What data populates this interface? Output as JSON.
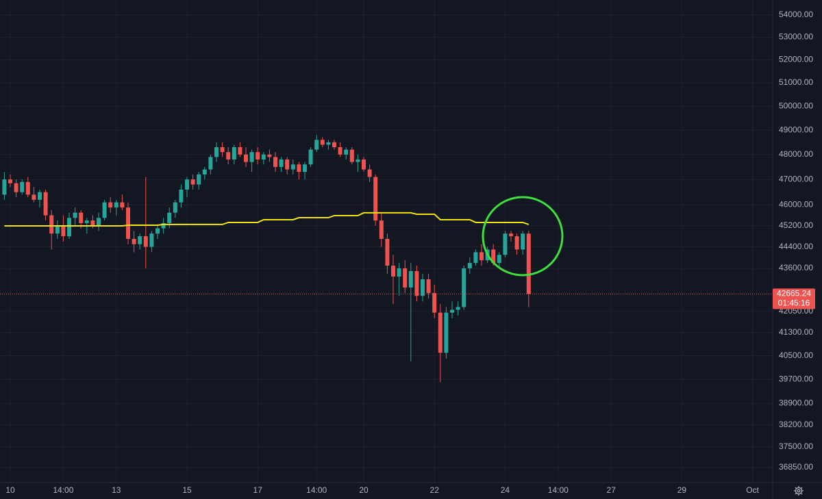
{
  "chart_data": {
    "type": "candlestick",
    "log": true,
    "grid": true,
    "up_color": "#26a69a",
    "down_color": "#ef5350",
    "ylim": [
      36384,
      54693
    ],
    "yticks": [
      {
        "value": 54000,
        "label": "54000.00"
      },
      {
        "value": 53000,
        "label": "53000.00"
      },
      {
        "value": 52000,
        "label": "52000.00"
      },
      {
        "value": 51000,
        "label": "51000.00"
      },
      {
        "value": 50000,
        "label": "50000.00"
      },
      {
        "value": 49000,
        "label": "49000.00"
      },
      {
        "value": 48000,
        "label": "48000.00"
      },
      {
        "value": 47000,
        "label": "47000.00"
      },
      {
        "value": 46000,
        "label": "46000.00"
      },
      {
        "value": 45200,
        "label": "45200.00"
      },
      {
        "value": 44400,
        "label": "44400.00"
      },
      {
        "value": 43600,
        "label": "43600.00"
      },
      {
        "value": 42050,
        "label": "42050.00"
      },
      {
        "value": 41300,
        "label": "41300.00"
      },
      {
        "value": 40500,
        "label": "40500.00"
      },
      {
        "value": 39700,
        "label": "39700.00"
      },
      {
        "value": 38900,
        "label": "38900.00"
      },
      {
        "value": 38200,
        "label": "38200.00"
      },
      {
        "value": 37500,
        "label": "37500.00"
      },
      {
        "value": 36850,
        "label": "36850.00"
      }
    ],
    "categories": [
      null,
      "10",
      null,
      null,
      null,
      null,
      null,
      null,
      null,
      null,
      "14:00",
      null,
      null,
      null,
      null,
      null,
      null,
      null,
      null,
      "13",
      null,
      null,
      null,
      null,
      null,
      null,
      null,
      null,
      null,
      null,
      null,
      "15",
      null,
      null,
      null,
      null,
      null,
      null,
      null,
      null,
      null,
      null,
      null,
      "17",
      null,
      null,
      null,
      null,
      null,
      null,
      null,
      null,
      null,
      "14:00",
      null,
      null,
      null,
      null,
      null,
      null,
      null,
      "20",
      null,
      null,
      null,
      null,
      null,
      null,
      null,
      null,
      null,
      null,
      null,
      "22",
      null,
      null,
      null,
      null,
      null,
      null,
      null,
      null,
      null,
      null,
      null,
      "24",
      null,
      null,
      null,
      null,
      null,
      null,
      null,
      null,
      "14:00",
      null,
      null,
      null,
      null,
      null,
      null,
      null,
      null,
      "27",
      null,
      null,
      null,
      null,
      null,
      null,
      null,
      null,
      null,
      null,
      null,
      "29",
      null,
      null,
      null,
      null,
      null,
      null,
      null,
      null,
      null,
      null,
      null,
      "Oct",
      null,
      null
    ],
    "open": [
      46400,
      47000,
      46850,
      46500,
      46900,
      46400,
      46200,
      46500,
      45600,
      44900,
      45200,
      44800,
      45500,
      45700,
      45300,
      45400,
      45200,
      45500,
      46100,
      45900,
      46100,
      45900,
      44700,
      44500,
      44800,
      44400,
      44900,
      45100,
      45300,
      45700,
      46100,
      46600,
      47000,
      46800,
      47200,
      47400,
      47900,
      48300,
      48100,
      47800,
      48300,
      48000,
      47700,
      48100,
      47800,
      48000,
      47900,
      47500,
      47800,
      47400,
      47600,
      47300,
      47600,
      48200,
      48600,
      48400,
      48500,
      48300,
      48000,
      48200,
      47700,
      47800,
      47400,
      47100,
      45400,
      44700,
      43700,
      43300,
      43600,
      42900,
      43500,
      42600,
      43200,
      42700,
      42000,
      40600,
      42000,
      42100,
      42200,
      43600,
      43800,
      44200,
      43900,
      44300,
      43800,
      44100,
      44900,
      44800,
      44300,
      44900,
      null,
      null,
      null,
      null,
      null,
      null,
      null,
      null,
      null,
      null,
      null,
      null,
      null,
      null,
      null,
      null,
      null,
      null,
      null,
      null,
      null,
      null,
      null,
      null,
      null,
      null,
      null,
      null,
      null,
      null,
      null,
      null,
      null,
      null,
      null,
      null,
      null,
      null,
      null,
      null
    ],
    "high": [
      47300,
      47200,
      47000,
      47000,
      47100,
      46700,
      46600,
      46600,
      45800,
      45400,
      45600,
      45700,
      45900,
      45800,
      45500,
      45600,
      45700,
      46200,
      46300,
      46200,
      46400,
      46100,
      45000,
      44900,
      47100,
      45000,
      45200,
      45500,
      45900,
      46200,
      46800,
      47100,
      47200,
      47300,
      47500,
      48000,
      48500,
      48500,
      48300,
      48400,
      48500,
      48300,
      48200,
      48300,
      48100,
      48200,
      48100,
      47900,
      47900,
      47800,
      47700,
      47700,
      48300,
      48800,
      48700,
      48600,
      48600,
      48500,
      48300,
      48300,
      48000,
      47900,
      47600,
      47200,
      45700,
      44900,
      44100,
      43800,
      43900,
      43800,
      43700,
      43400,
      43400,
      43000,
      42300,
      42200,
      42400,
      42400,
      43700,
      44000,
      44300,
      44500,
      44400,
      44500,
      44200,
      45000,
      45000,
      44900,
      45000,
      45000,
      null,
      null,
      null,
      null,
      null,
      null,
      null,
      null,
      null,
      null,
      null,
      null,
      null,
      null,
      null,
      null,
      null,
      null,
      null,
      null,
      null,
      null,
      null,
      null,
      null,
      null,
      null,
      null,
      null,
      null,
      null,
      null,
      null,
      null,
      null,
      null,
      null,
      null,
      null,
      null
    ],
    "low": [
      46200,
      46700,
      46300,
      46400,
      46300,
      46100,
      45900,
      45400,
      44300,
      44700,
      44600,
      44700,
      45200,
      45100,
      44900,
      45100,
      45000,
      45400,
      45700,
      45600,
      45800,
      44500,
      44200,
      44300,
      43600,
      44200,
      44700,
      44900,
      45100,
      45500,
      45900,
      46300,
      46600,
      46600,
      47000,
      47200,
      47700,
      47900,
      47600,
      47600,
      47900,
      47500,
      47300,
      47600,
      47600,
      47700,
      47300,
      47300,
      47200,
      47200,
      47000,
      47000,
      47500,
      48100,
      48300,
      48200,
      48200,
      47900,
      47800,
      47600,
      47300,
      47300,
      46900,
      45200,
      44400,
      43400,
      42300,
      42600,
      42700,
      40300,
      42400,
      42400,
      42500,
      41800,
      39600,
      40400,
      41800,
      41900,
      42100,
      43400,
      43700,
      43700,
      43800,
      43700,
      43600,
      44000,
      44600,
      44100,
      44100,
      42200,
      null,
      null,
      null,
      null,
      null,
      null,
      null,
      null,
      null,
      null,
      null,
      null,
      null,
      null,
      null,
      null,
      null,
      null,
      null,
      null,
      null,
      null,
      null,
      null,
      null,
      null,
      null,
      null,
      null,
      null,
      null,
      null,
      null,
      null,
      null,
      null,
      null,
      null,
      null,
      null
    ],
    "close": [
      47000,
      46850,
      46500,
      46900,
      46400,
      46200,
      46500,
      45600,
      44900,
      45200,
      44800,
      45500,
      45700,
      45300,
      45400,
      45200,
      45500,
      46100,
      45900,
      46100,
      45900,
      44700,
      44500,
      44800,
      44400,
      44900,
      45100,
      45300,
      45700,
      46100,
      46600,
      47000,
      46800,
      47200,
      47400,
      47900,
      48300,
      48100,
      47800,
      48300,
      48000,
      47700,
      48100,
      47800,
      48000,
      47900,
      47500,
      47800,
      47400,
      47600,
      47300,
      47600,
      48200,
      48600,
      48400,
      48500,
      48300,
      48000,
      48200,
      47700,
      47800,
      47400,
      47100,
      45400,
      44700,
      43700,
      43300,
      43600,
      42900,
      43500,
      42600,
      43200,
      42700,
      42000,
      40600,
      42000,
      42100,
      42200,
      43600,
      43800,
      44200,
      43900,
      44300,
      43800,
      44100,
      44900,
      44800,
      44300,
      44900,
      42665.24,
      null,
      null,
      null,
      null,
      null,
      null,
      null,
      null,
      null,
      null,
      null,
      null,
      null,
      null,
      null,
      null,
      null,
      null,
      null,
      null,
      null,
      null,
      null,
      null,
      null,
      null,
      null,
      null,
      null,
      null,
      null,
      null,
      null,
      null,
      null,
      null,
      null,
      null,
      null,
      null
    ],
    "ma": {
      "color": "#f2e40e",
      "values": [
        45193,
        45193,
        45193,
        45193,
        45193,
        45193,
        45193,
        45193,
        45193,
        45193,
        45193,
        45193,
        45193,
        45193,
        45193,
        45193,
        45193,
        45193,
        45193,
        45193,
        45193,
        45220,
        45220,
        45220,
        45220,
        45220,
        45220,
        45247,
        45247,
        45247,
        45247,
        45247,
        45247,
        45247,
        45247,
        45247,
        45247,
        45247,
        45325,
        45325,
        45325,
        45325,
        45325,
        45325,
        45430,
        45430,
        45430,
        45430,
        45430,
        45430,
        45507,
        45507,
        45507,
        45507,
        45507,
        45507,
        45587,
        45587,
        45587,
        45587,
        45587,
        45694,
        45694,
        45694,
        45694,
        45694,
        45694,
        45694,
        45694,
        45694,
        45640,
        45640,
        45640,
        45640,
        45430,
        45430,
        45430,
        45430,
        45430,
        45430,
        45325,
        45325,
        45325,
        45325,
        45325,
        45325,
        45325,
        45325,
        45325,
        45247,
        null,
        null,
        null,
        null,
        null,
        null,
        null,
        null,
        null,
        null,
        null,
        null,
        null,
        null,
        null,
        null,
        null,
        null,
        null,
        null,
        null,
        null,
        null,
        null,
        null,
        null,
        null,
        null,
        null,
        null,
        null,
        null,
        null,
        null,
        null,
        null,
        null,
        null,
        null,
        null
      ]
    },
    "last_price": 42665.24,
    "countdown": "01:45:16"
  }
}
